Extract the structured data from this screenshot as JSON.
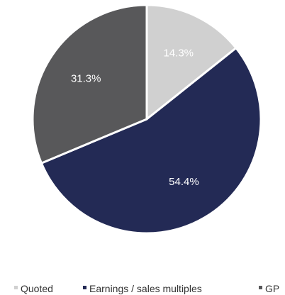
{
  "chart_data": {
    "type": "pie",
    "title": "",
    "slices": [
      {
        "label": "Quoted",
        "value": 14.3,
        "display": "14.3%",
        "color": "#d0d0d0"
      },
      {
        "label": "Earnings / sales multiples",
        "value": 54.4,
        "display": "54.4%",
        "color": "#232a55"
      },
      {
        "label": "GP",
        "value": 31.3,
        "display": "31.3%",
        "color": "#58585a"
      }
    ],
    "start_angle_deg": 0,
    "direction": "clockwise",
    "legend_position": "bottom",
    "label_color": "#ffffff"
  }
}
